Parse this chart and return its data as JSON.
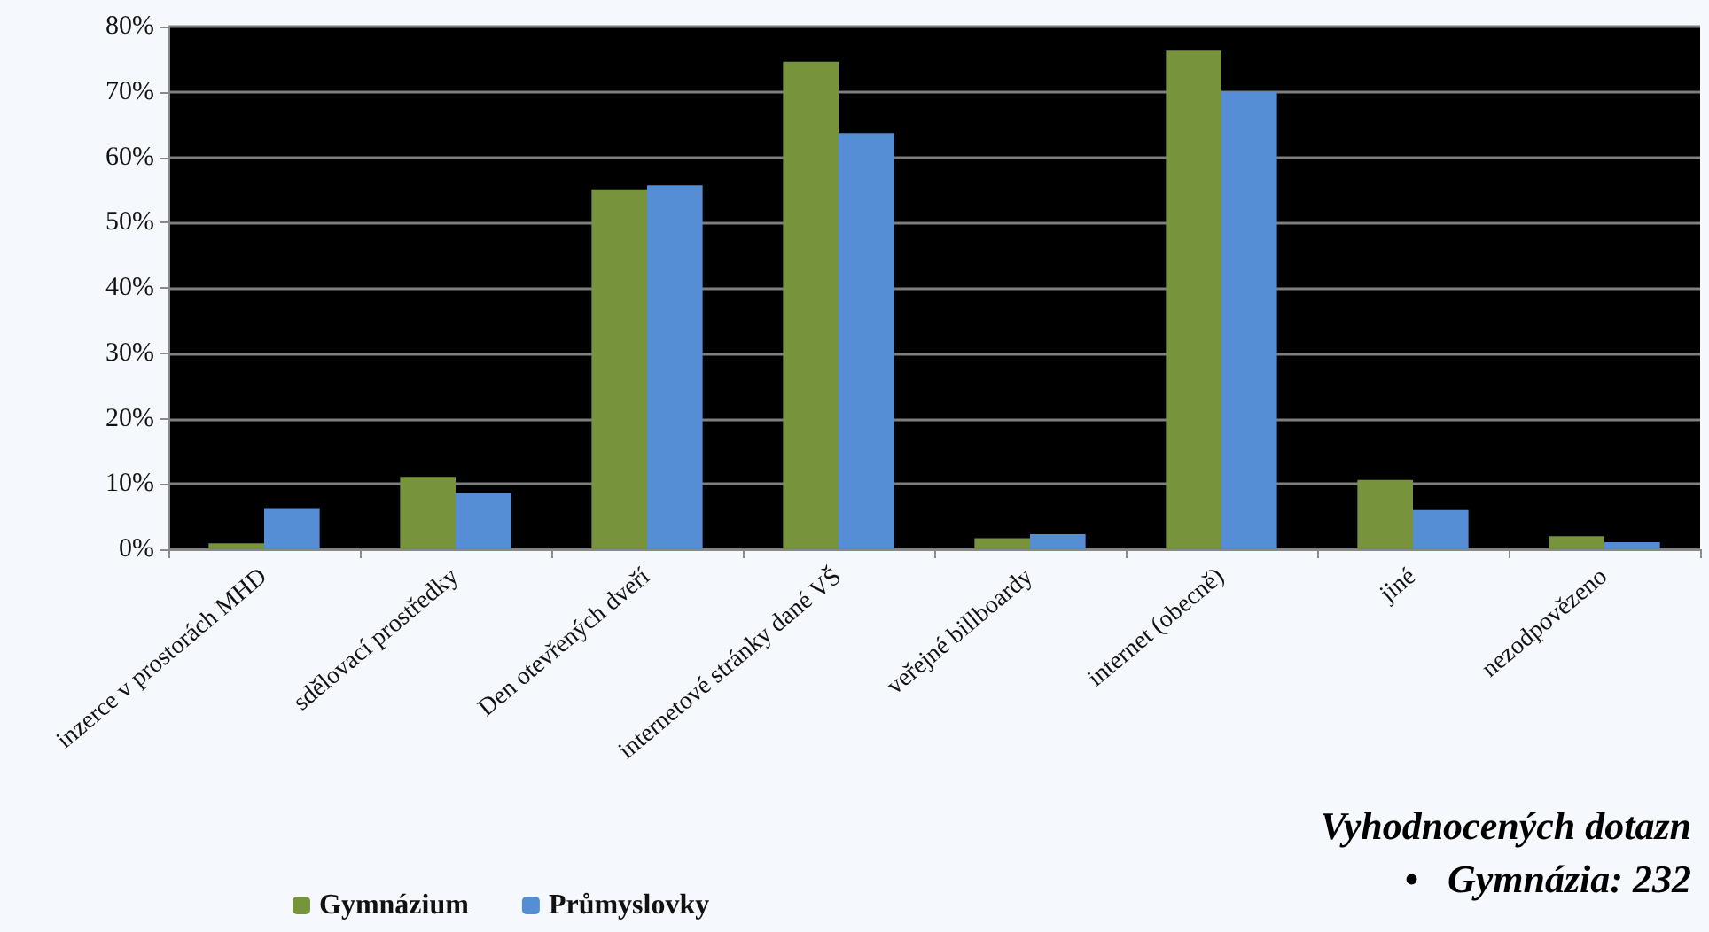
{
  "chart_data": {
    "type": "bar",
    "categories": [
      "inzerce v prostorách MHD",
      "sdělovací prostředky",
      "Den otevřených dveří",
      "internetové stránky dané VŠ",
      "veřejné billboardy",
      "internet (obecně)",
      "jiné",
      "nezodpovězeno"
    ],
    "series": [
      {
        "name": "Gymnázium",
        "color": "#77933c",
        "values": [
          0.9,
          11.1,
          55.1,
          74.6,
          1.7,
          76.3,
          10.6,
          2.0
        ]
      },
      {
        "name": "Průmyslovky",
        "color": "#558ed5",
        "values": [
          6.3,
          8.6,
          55.7,
          63.7,
          2.3,
          70.0,
          6.0,
          1.1
        ]
      }
    ],
    "ylim": [
      0,
      80
    ],
    "yticks": [
      {
        "value": 0,
        "label": "0%"
      },
      {
        "value": 10,
        "label": "10%"
      },
      {
        "value": 20,
        "label": "20%"
      },
      {
        "value": 30,
        "label": "30%"
      },
      {
        "value": 40,
        "label": "40%"
      },
      {
        "value": 50,
        "label": "50%"
      },
      {
        "value": 60,
        "label": "60%"
      },
      {
        "value": 70,
        "label": "70%"
      },
      {
        "value": 80,
        "label": "80%"
      }
    ],
    "grid": "y",
    "legend": "bottom",
    "annotations": [
      "Vyhodnocených dotazn",
      "•   Gymnázia: 232"
    ]
  }
}
